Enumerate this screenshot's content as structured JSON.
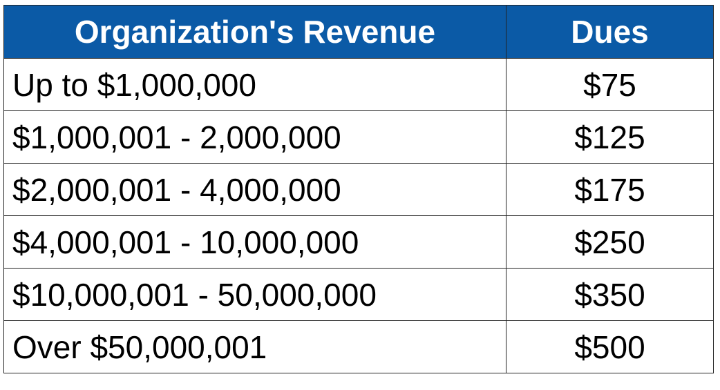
{
  "table": {
    "header": [
      "Organization's Revenue",
      "Dues"
    ],
    "rows": [
      [
        "Up to $1,000,000",
        "$75"
      ],
      [
        "$1,000,001 - 2,000,000",
        "$125"
      ],
      [
        "$2,000,001 - 4,000,000",
        "$175"
      ],
      [
        "$4,000,001 - 10,000,000",
        "$250"
      ],
      [
        "$10,000,001 - 50,000,000",
        "$350"
      ],
      [
        "Over $50,000,001",
        "$500"
      ]
    ]
  }
}
